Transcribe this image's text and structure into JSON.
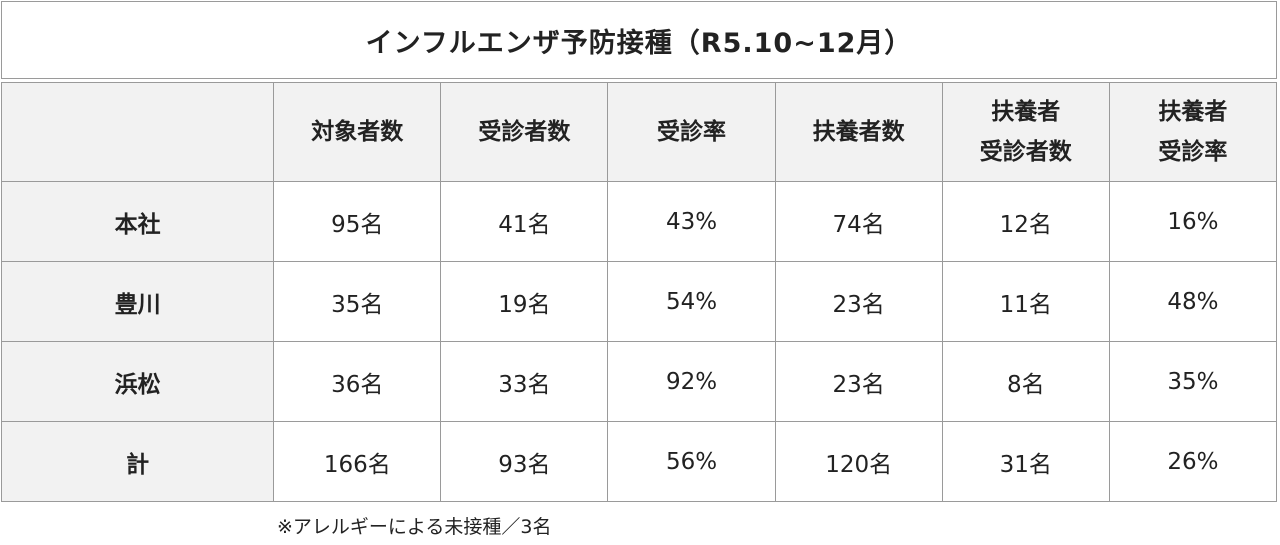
{
  "title": "インフルエンザ予防接種（R5.10~12月）",
  "headers": [
    {
      "line1": "",
      "line2": ""
    },
    {
      "line1": "対象者数",
      "line2": ""
    },
    {
      "line1": "受診者数",
      "line2": ""
    },
    {
      "line1": "受診率",
      "line2": ""
    },
    {
      "line1": "扶養者数",
      "line2": ""
    },
    {
      "line1": "扶養者",
      "line2": "受診者数"
    },
    {
      "line1": "扶養者",
      "line2": "受診率"
    }
  ],
  "rows": [
    {
      "label": "本社",
      "cells": [
        "95名",
        "41名",
        "43%",
        "74名",
        "12名",
        "16%"
      ]
    },
    {
      "label": "豊川",
      "cells": [
        "35名",
        "19名",
        "54%",
        "23名",
        "11名",
        "48%"
      ]
    },
    {
      "label": "浜松",
      "cells": [
        "36名",
        "33名",
        "92%",
        "23名",
        "8名",
        "35%"
      ]
    },
    {
      "label": "計",
      "cells": [
        "166名",
        "93名",
        "56%",
        "120名",
        "31名",
        "26%"
      ]
    }
  ],
  "note": "※アレルギーによる未接種／3名"
}
